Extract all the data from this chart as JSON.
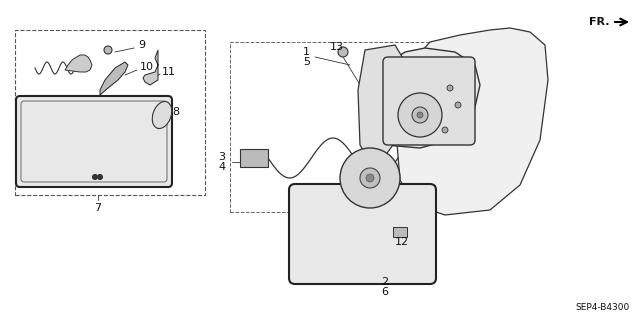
{
  "bg_color": "#ffffff",
  "diagram_code": "SEP4-B4300",
  "line_color": "#333333",
  "dark": "#111111"
}
